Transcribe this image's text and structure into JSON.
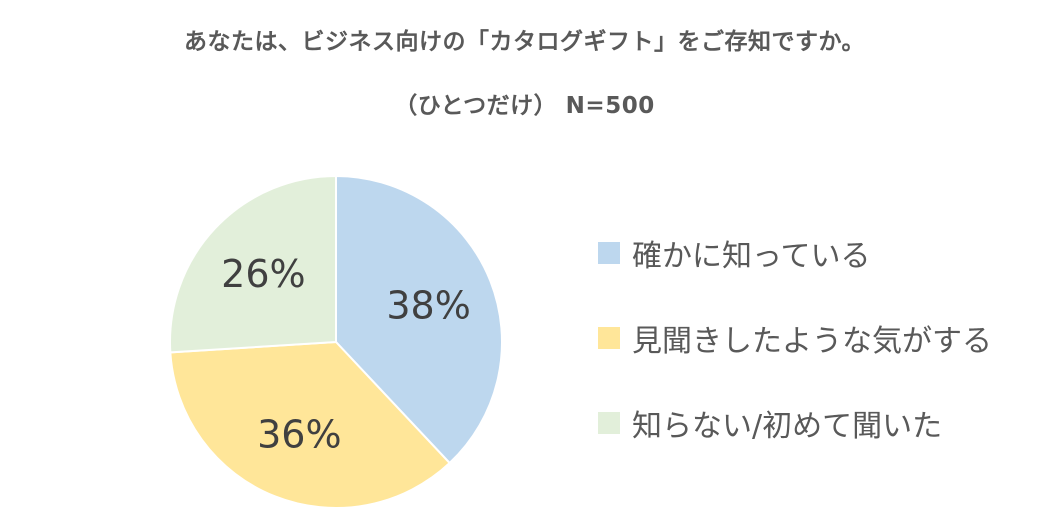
{
  "title_line1": "あなたは、ビジネス向けの「カタログギフト」をご存知ですか。",
  "title_line2": "（ひとつだけ）  N=500",
  "chart_data": {
    "type": "pie",
    "title": "あなたは、ビジネス向けの「カタログギフト」をご存知ですか。（ひとつだけ） N=500",
    "categories": [
      "確かに知っている",
      "見聞きしたような気がする",
      "知らない/初めて聞いた"
    ],
    "values": [
      38,
      36,
      26
    ],
    "labels": [
      "38%",
      "36%",
      "26%"
    ],
    "colors": [
      "#BDD7EE",
      "#FFE699",
      "#E2EFDA"
    ],
    "legend_position": "right",
    "start_angle": "12 o'clock",
    "direction": "clockwise"
  }
}
